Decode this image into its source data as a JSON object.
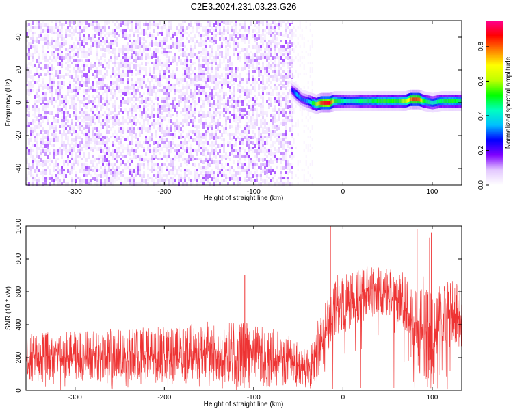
{
  "title": "C2E3.2024.231.03.23.G26",
  "chart_data": [
    {
      "type": "heatmap",
      "xlabel": "Height of straight line (km)",
      "ylabel": "Frequency (Hz)",
      "xlim": [
        -355,
        133
      ],
      "ylim": [
        -50,
        50
      ],
      "xticks": [
        -300,
        -200,
        -100,
        0,
        100
      ],
      "xtick_labels": [
        "-300",
        "-200",
        "-100",
        "0",
        "100"
      ],
      "yticks": [
        -40,
        -20,
        0,
        20,
        40
      ],
      "ytick_labels": [
        "-40",
        "-20",
        "0",
        "20",
        "40"
      ],
      "colorbar": {
        "label": "Normalized spectral amplitude",
        "range": [
          0,
          0.95
        ],
        "ticks": [
          0.0,
          0.2,
          0.4,
          0.6,
          0.8
        ],
        "tick_labels": [
          "0.0",
          "0.2",
          "0.4",
          "0.6",
          "0.8"
        ],
        "colormap": [
          "#ffffff",
          "#e3c8ff",
          "#7f00ff",
          "#0000ff",
          "#00bfff",
          "#00ffc0",
          "#00ff00",
          "#c0ff00",
          "#ffff00",
          "#ff8000",
          "#ff0000",
          "#ff0090"
        ]
      },
      "noise_region": {
        "x_range": [
          -355,
          -58
        ],
        "level": 0.1
      },
      "signal_track": {
        "x": [
          -58,
          -52,
          -46,
          -40,
          -35,
          -30,
          -25,
          -20,
          -15,
          -10,
          -5,
          0,
          10,
          20,
          30,
          40,
          50,
          60,
          70,
          75,
          80,
          85,
          90,
          100,
          110,
          120,
          133
        ],
        "freq": [
          8,
          5,
          2,
          1,
          0,
          -1,
          0,
          0,
          0,
          1,
          1,
          1,
          1,
          1,
          1,
          1,
          1,
          1,
          1,
          2,
          2,
          2,
          1,
          0,
          1,
          1,
          1
        ],
        "amplitude": [
          0.25,
          0.35,
          0.3,
          0.35,
          0.5,
          0.6,
          0.9,
          0.95,
          0.95,
          0.6,
          0.5,
          0.45,
          0.45,
          0.5,
          0.5,
          0.55,
          0.55,
          0.55,
          0.65,
          0.8,
          0.9,
          0.85,
          0.55,
          0.45,
          0.5,
          0.55,
          0.5
        ]
      }
    },
    {
      "type": "line",
      "xlabel": "Height of straight line (km)",
      "ylabel": "SNR (10 * v/v)",
      "xlim": [
        -355,
        133
      ],
      "ylim": [
        0,
        1000
      ],
      "xticks": [
        -300,
        -200,
        -100,
        0,
        100
      ],
      "xtick_labels": [
        "-300",
        "-200",
        "-100",
        "0",
        "100"
      ],
      "yticks": [
        0,
        200,
        400,
        600,
        800,
        1000
      ],
      "ytick_labels": [
        "0",
        "200",
        "400",
        "600",
        "800",
        "1000"
      ],
      "color": "#ee3333",
      "envelope": {
        "x": [
          -355,
          -300,
          -200,
          -150,
          -120,
          -100,
          -60,
          -40,
          -30,
          -20,
          -15,
          -10,
          0,
          10,
          30,
          50,
          70,
          80,
          90,
          100,
          110,
          133
        ],
        "low": [
          60,
          60,
          70,
          60,
          40,
          40,
          50,
          30,
          60,
          150,
          250,
          300,
          350,
          380,
          450,
          420,
          350,
          200,
          60,
          10,
          250,
          250
        ],
        "high": [
          360,
          360,
          390,
          420,
          420,
          420,
          340,
          260,
          400,
          560,
          640,
          700,
          720,
          720,
          760,
          740,
          720,
          640,
          700,
          640,
          680,
          680
        ]
      },
      "spikes": [
        {
          "x": -110,
          "y": 700
        },
        {
          "x": -14,
          "y": 1000
        },
        {
          "x": 83,
          "y": 980
        },
        {
          "x": 97,
          "y": 930
        },
        {
          "x": 99,
          "y": 960
        }
      ]
    }
  ]
}
